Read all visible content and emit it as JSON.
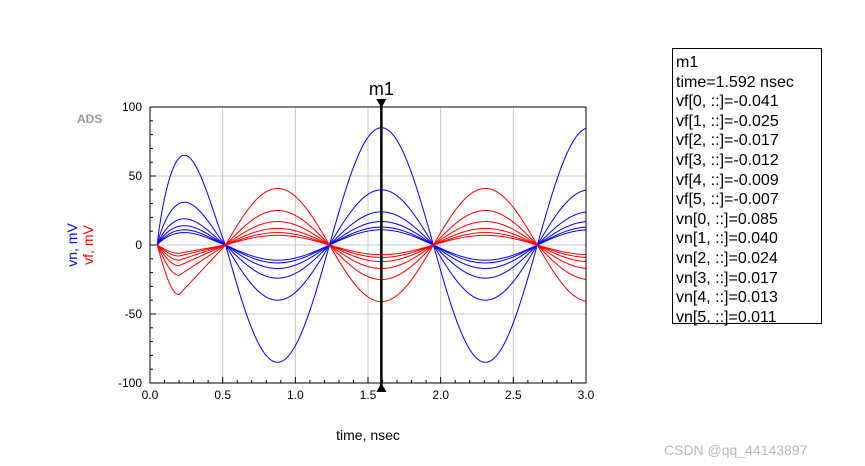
{
  "watermark": "CSDN @qq_44143897",
  "ads_tag": "ADS",
  "chart_data": {
    "type": "line",
    "xlabel": "time, nsec",
    "ylabel_blue": "vn, mV",
    "ylabel_red": "vf, mV",
    "xlim": [
      0,
      3.0
    ],
    "ylim": [
      -100,
      100
    ],
    "x_ticks": [
      "0.0",
      "0.5",
      "1.0",
      "1.5",
      "2.0",
      "2.5",
      "3.0"
    ],
    "y_ticks": [
      "100",
      "50",
      "0",
      "-50",
      "-100"
    ],
    "grid": true,
    "period_ns": 1.43,
    "series": [
      {
        "name": "vn[0, ::]",
        "color": "#0000ff",
        "amp_first_peak": 65,
        "amp": 85,
        "kind": "vn"
      },
      {
        "name": "vn[1, ::]",
        "color": "#0000ff",
        "amp_first_peak": 31,
        "amp": 40,
        "kind": "vn"
      },
      {
        "name": "vn[2, ::]",
        "color": "#0000ff",
        "amp_first_peak": 19,
        "amp": 24,
        "kind": "vn"
      },
      {
        "name": "vn[3, ::]",
        "color": "#0000ff",
        "amp_first_peak": 14,
        "amp": 17,
        "kind": "vn"
      },
      {
        "name": "vn[4, ::]",
        "color": "#0000ff",
        "amp_first_peak": 11,
        "amp": 13,
        "kind": "vn"
      },
      {
        "name": "vn[5, ::]",
        "color": "#0000ff",
        "amp_first_peak": 9,
        "amp": 11,
        "kind": "vn"
      },
      {
        "name": "vf[0, ::]",
        "color": "#ff0000",
        "amp_first_peak": -36,
        "amp": -41,
        "kind": "vf"
      },
      {
        "name": "vf[1, ::]",
        "color": "#ff0000",
        "amp_first_peak": -22,
        "amp": -25,
        "kind": "vf"
      },
      {
        "name": "vf[2, ::]",
        "color": "#ff0000",
        "amp_first_peak": -15,
        "amp": -17,
        "kind": "vf"
      },
      {
        "name": "vf[3, ::]",
        "color": "#ff0000",
        "amp_first_peak": -11,
        "amp": -12,
        "kind": "vf"
      },
      {
        "name": "vf[4, ::]",
        "color": "#ff0000",
        "amp_first_peak": -8,
        "amp": -9,
        "kind": "vf"
      },
      {
        "name": "vf[5, ::]",
        "color": "#ff0000",
        "amp_first_peak": -6,
        "amp": -7,
        "kind": "vf"
      }
    ],
    "marker": {
      "name": "m1",
      "time": 1.592,
      "readout_lines": [
        "m1",
        "time=1.592 nsec",
        "vf[0, ::]=-0.041",
        "vf[1, ::]=-0.025",
        "vf[2, ::]=-0.017",
        "vf[3, ::]=-0.012",
        "vf[4, ::]=-0.009",
        "vf[5, ::]=-0.007",
        "vn[0, ::]=0.085",
        "vn[1, ::]=0.040",
        "vn[2, ::]=0.024",
        "vn[3, ::]=0.017",
        "vn[4, ::]=0.013",
        "vn[5, ::]=0.011"
      ]
    }
  }
}
